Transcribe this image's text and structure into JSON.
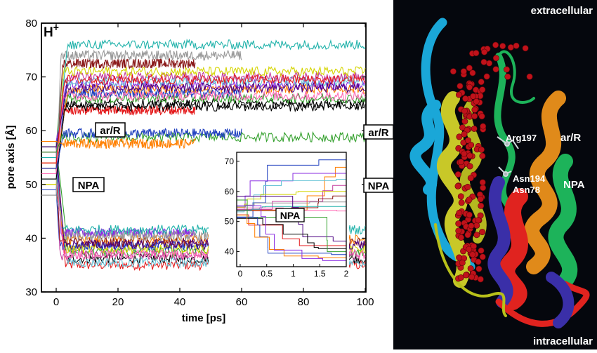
{
  "chart_data": [
    {
      "type": "line",
      "title": "",
      "xlabel": "time [ps]",
      "ylabel": "pore axis [Å]",
      "xlim": [
        0,
        100
      ],
      "ylim": [
        30,
        80
      ],
      "xticks": [
        "0",
        "20",
        "40",
        "60",
        "80",
        "100"
      ],
      "yticks": [
        "30",
        "40",
        "50",
        "60",
        "70",
        "80"
      ],
      "grid": false,
      "corner_label": "H",
      "corner_label_sup": "+",
      "region_labels": [
        {
          "text": "ar/R",
          "y": 58.8
        },
        {
          "text": "NPA",
          "y": 50.0
        }
      ],
      "series_colors": [
        "#e41a1c",
        "#000000",
        "#33a02c",
        "#1f3fbf",
        "#ff7f00",
        "#8a2be2",
        "#66c2d6",
        "#c43c9c",
        "#d4d400",
        "#8b1a1a",
        "#999999",
        "#20b2aa",
        "#ff69b4",
        "#4b0082"
      ],
      "series_summary": [
        {
          "start": 55,
          "end": 35.0
        },
        {
          "start": 52,
          "end": 36.2
        },
        {
          "start": 57,
          "end": 37.4
        },
        {
          "start": 49,
          "end": 38.6
        },
        {
          "start": 54,
          "end": 39.8
        },
        {
          "start": 58,
          "end": 41.0
        },
        {
          "start": 51,
          "end": 35.5
        },
        {
          "start": 56,
          "end": 36.8
        },
        {
          "start": 50,
          "end": 38.0
        },
        {
          "start": 53,
          "end": 39.2
        },
        {
          "start": 48,
          "end": 40.4
        },
        {
          "start": 55,
          "end": 41.6
        },
        {
          "start": 52,
          "end": 37.0
        },
        {
          "start": 57,
          "end": 38.8
        },
        {
          "start": 55,
          "end": 63.8
        },
        {
          "start": 52,
          "end": 65.0
        },
        {
          "start": 57,
          "end": 66.0
        },
        {
          "start": 49,
          "end": 67.0
        },
        {
          "start": 54,
          "end": 67.8
        },
        {
          "start": 58,
          "end": 68.5
        },
        {
          "start": 51,
          "end": 69.2
        },
        {
          "start": 56,
          "end": 70.0
        },
        {
          "start": 50,
          "end": 71.0
        },
        {
          "start": 53,
          "end": 72.5
        },
        {
          "start": 48,
          "end": 74.0
        },
        {
          "start": 55,
          "end": 76.0
        },
        {
          "start": 52,
          "end": 66.5
        },
        {
          "start": 57,
          "end": 68.0
        },
        {
          "start": 54,
          "end": 69.5
        },
        {
          "start": 51,
          "end": 64.5
        },
        {
          "start": 56,
          "end": 58.8
        },
        {
          "start": 53,
          "end": 59.5
        },
        {
          "start": 58,
          "end": 57.6
        }
      ]
    },
    {
      "type": "line",
      "title": "",
      "xlabel": "",
      "ylabel": "",
      "xlim": [
        0,
        2
      ],
      "ylim": [
        35,
        73
      ],
      "xticks": [
        "0",
        "0.5",
        "1",
        "1.5",
        "2"
      ],
      "yticks": [
        "40",
        "50",
        "60",
        "70"
      ],
      "region_label": "NPA",
      "series_summary": [
        {
          "end": 70.5
        },
        {
          "end": 68.0
        },
        {
          "end": 66.0
        },
        {
          "end": 64.0
        },
        {
          "end": 62.0
        },
        {
          "end": 60.0
        },
        {
          "end": 58.5
        },
        {
          "end": 56.5
        },
        {
          "end": 55.0
        },
        {
          "end": 53.5
        },
        {
          "end": 43.5
        },
        {
          "end": 42.0
        },
        {
          "end": 41.0
        },
        {
          "end": 40.0
        },
        {
          "end": 39.0
        },
        {
          "end": 38.0
        },
        {
          "end": 37.0
        }
      ]
    }
  ],
  "structure": {
    "labels": {
      "extracellular": "extracellular",
      "intracellular": "intracellular",
      "arg": "Arg197",
      "asn194": "Asn194",
      "asn78": "Asn78",
      "arR": "ar/R",
      "npa": "NPA"
    },
    "colors": {
      "background": "#05070d",
      "helix_cyan": "#1aa7d8",
      "helix_yellow": "#c8c828",
      "helix_orange": "#e08a1a",
      "helix_green": "#1db35a",
      "helix_red": "#e0231f",
      "helix_blue": "#3a2fa8",
      "water": "#c0121a"
    }
  }
}
